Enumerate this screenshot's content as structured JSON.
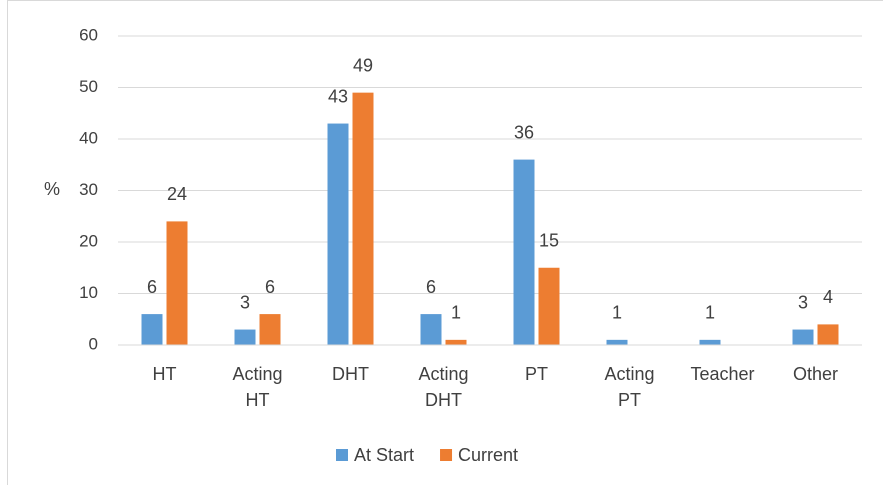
{
  "chart_data": {
    "type": "bar",
    "y_label": "%",
    "categories": [
      "HT",
      "Acting HT",
      "DHT",
      "Acting DHT",
      "PT",
      "Acting PT",
      "Teacher",
      "Other"
    ],
    "series": [
      {
        "name": "At Start",
        "color": "#5b9bd5",
        "values": [
          6,
          3,
          43,
          6,
          36,
          1,
          1,
          3
        ]
      },
      {
        "name": "Current",
        "color": "#ed7d31",
        "values": [
          24,
          6,
          49,
          1,
          15,
          null,
          null,
          4
        ]
      }
    ],
    "ylim": [
      0,
      60
    ],
    "yticks": [
      0,
      10,
      20,
      30,
      40,
      50,
      60
    ],
    "grid": true,
    "legend": "bottom"
  }
}
